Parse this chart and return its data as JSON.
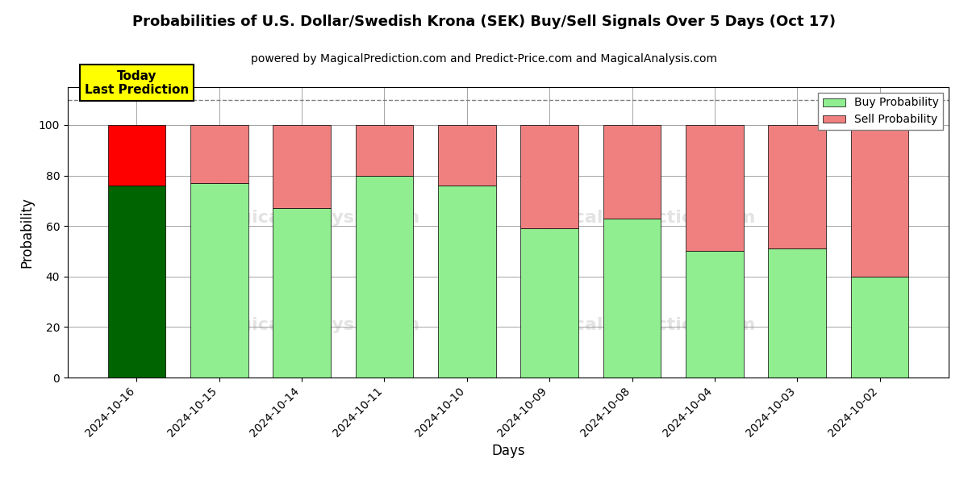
{
  "title": "Probabilities of U.S. Dollar/Swedish Krona (SEK) Buy/Sell Signals Over 5 Days (Oct 17)",
  "subtitle": "powered by MagicalPrediction.com and Predict-Price.com and MagicalAnalysis.com",
  "xlabel": "Days",
  "ylabel": "Probability",
  "dates": [
    "2024-10-16",
    "2024-10-15",
    "2024-10-14",
    "2024-10-11",
    "2024-10-10",
    "2024-10-09",
    "2024-10-08",
    "2024-10-04",
    "2024-10-03",
    "2024-10-02"
  ],
  "buy_values": [
    76,
    77,
    67,
    80,
    76,
    59,
    63,
    50,
    51,
    40
  ],
  "sell_values": [
    24,
    23,
    33,
    20,
    24,
    41,
    37,
    50,
    49,
    60
  ],
  "today_bar_index": 0,
  "buy_color_today": "#006400",
  "sell_color_today": "#FF0000",
  "buy_color_normal": "#90EE90",
  "sell_color_normal": "#F08080",
  "today_label_bg": "#FFFF00",
  "today_label_text": "Today\nLast Prediction",
  "ylim": [
    0,
    115
  ],
  "dashed_line_y": 110,
  "legend_buy": "Buy Probability",
  "legend_sell": "Sell Probability",
  "title_fontsize": 13,
  "subtitle_fontsize": 10,
  "axis_label_fontsize": 12,
  "tick_fontsize": 10,
  "bar_width": 0.7,
  "yticks": [
    0,
    20,
    40,
    60,
    80,
    100
  ]
}
